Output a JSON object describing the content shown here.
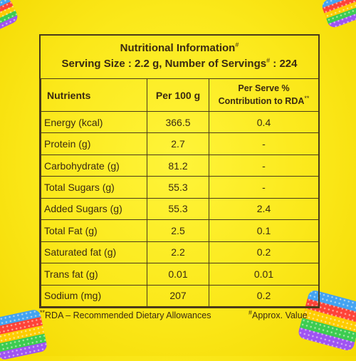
{
  "title": "Nutritional Information",
  "title_mark": "#",
  "serving_line": "Serving Size : 2.2 g, Number of Servings",
  "serving_mark": "#",
  "serving_count": ": 224",
  "headers": {
    "nutrients": "Nutrients",
    "per100": "Per 100 g",
    "per_serve_line1": "Per Serve %",
    "per_serve_line2": "Contribution to RDA",
    "per_serve_mark": "**"
  },
  "rows": [
    {
      "nutrient": "Energy (kcal)",
      "per100": "366.5",
      "rda": "0.4"
    },
    {
      "nutrient": "Protein (g)",
      "per100": "2.7",
      "rda": "-"
    },
    {
      "nutrient": "Carbohydrate (g)",
      "per100": "81.2",
      "rda": "-"
    },
    {
      "nutrient": "Total Sugars (g)",
      "per100": "55.3",
      "rda": "-"
    },
    {
      "nutrient": "Added Sugars (g)",
      "per100": "55.3",
      "rda": "2.4"
    },
    {
      "nutrient": "Total Fat (g)",
      "per100": "2.5",
      "rda": "0.1"
    },
    {
      "nutrient": "Saturated fat (g)",
      "per100": "2.2",
      "rda": "0.2"
    },
    {
      "nutrient": "Trans fat (g)",
      "per100": "0.01",
      "rda": "0.01"
    },
    {
      "nutrient": "Sodium (mg)",
      "per100": "207",
      "rda": "0.2"
    }
  ],
  "footnotes": {
    "rda_mark": "**",
    "rda": "RDA – Recommended Dietary Allowances",
    "approx_mark": "#",
    "approx": "Approx. Value"
  },
  "colors": {
    "background": "#fbe81a",
    "text": "#3b2a12",
    "border": "#4a3a1a"
  }
}
